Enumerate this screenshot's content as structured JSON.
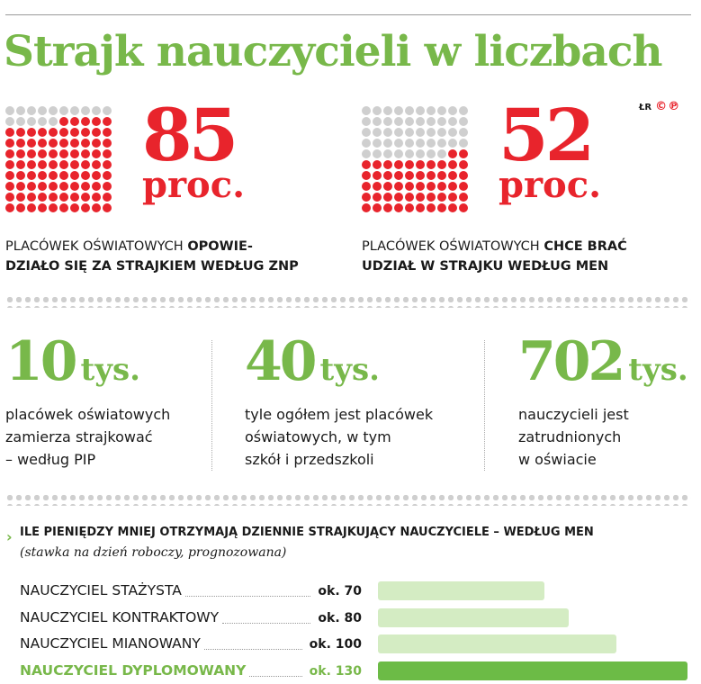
{
  "title": "Strajk nauczycieli w liczbach",
  "credit": {
    "author": "ŁR",
    "mark": "©℗"
  },
  "percent_blocks": [
    {
      "value": "85",
      "unit": "proc.",
      "filled_dots": 85,
      "total_dots": 100,
      "caption_normal": "PLACÓWEK OŚWIATOWYCH ",
      "caption_bold_1": "OPOWIE-",
      "caption_bold_2": "DZIAŁO SIĘ ZA STRAJKIEM WEDŁUG ZNP"
    },
    {
      "value": "52",
      "unit": "proc.",
      "filled_dots": 52,
      "total_dots": 100,
      "caption_normal": "PLACÓWEK OŚWIATOWYCH ",
      "caption_bold_1": "CHCE BRAĆ",
      "caption_bold_2": "UDZIAŁ W STRAJKU WEDŁUG MEN"
    }
  ],
  "stats": [
    {
      "value": "10",
      "unit": "tys.",
      "lines": [
        "placówek oświatowych",
        "zamierza strajkować",
        "– według PIP"
      ]
    },
    {
      "value": "40",
      "unit": "tys.",
      "lines": [
        "tyle ogółem jest placówek",
        "oświatowych, w tym",
        "szkół i przedszkoli"
      ]
    },
    {
      "value": "702",
      "unit": "tys.",
      "lines": [
        "nauczycieli jest",
        "zatrudnionych",
        "w oświacie"
      ]
    }
  ],
  "colors": {
    "accent_green": "#78b84a",
    "accent_red": "#e8242c",
    "bar_light": "#d4ecc3",
    "bar_highlight": "#6cbb46",
    "dot_gray": "#cfcfcf"
  },
  "chart_data": {
    "type": "bar",
    "title": "Ile pieniędzy mniej otrzymają dziennie strajkujący nauczyciele – według MEN",
    "subtitle": "(stawka na dzień roboczy, prognozowana)",
    "categories": [
      "NAUCZYCIEL STAŻYSTA",
      "NAUCZYCIEL KONTRAKTOWY",
      "NAUCZYCIEL MIANOWANY",
      "NAUCZYCIEL DYPLOMOWANY"
    ],
    "values": [
      70,
      80,
      100,
      130
    ],
    "value_labels": [
      "ok. 70",
      "ok. 80",
      "ok. 100",
      "ok. 130"
    ],
    "highlight_index": 3,
    "orientation": "horizontal"
  }
}
